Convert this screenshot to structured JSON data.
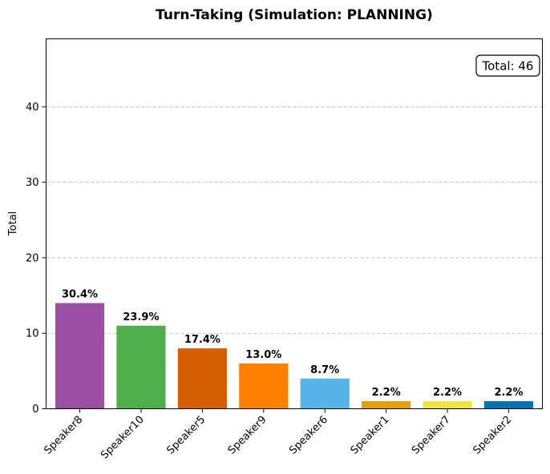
{
  "chart_data": {
    "type": "bar",
    "title": "Turn-Taking (Simulation: PLANNING)",
    "xlabel": "",
    "ylabel": "Total",
    "ylim": [
      0,
      49
    ],
    "yticks": [
      0,
      10,
      20,
      30,
      40
    ],
    "grid": "y-dashed",
    "categories": [
      "Speaker8",
      "Speaker10",
      "Speaker5",
      "Speaker9",
      "Speaker6",
      "Speaker1",
      "Speaker7",
      "Speaker2"
    ],
    "values": [
      14,
      11,
      8,
      6,
      4,
      1,
      1,
      1
    ],
    "percent_labels": [
      "30.4%",
      "23.9%",
      "17.4%",
      "13.0%",
      "8.7%",
      "2.2%",
      "2.2%",
      "2.2%"
    ],
    "colors": [
      "#9b4fa2",
      "#4daf4a",
      "#d55e00",
      "#ff7f00",
      "#56b4e9",
      "#e69f00",
      "#f0e442",
      "#0072b2"
    ],
    "annotation": {
      "text": "Total: 46",
      "placement": "top-right"
    }
  }
}
